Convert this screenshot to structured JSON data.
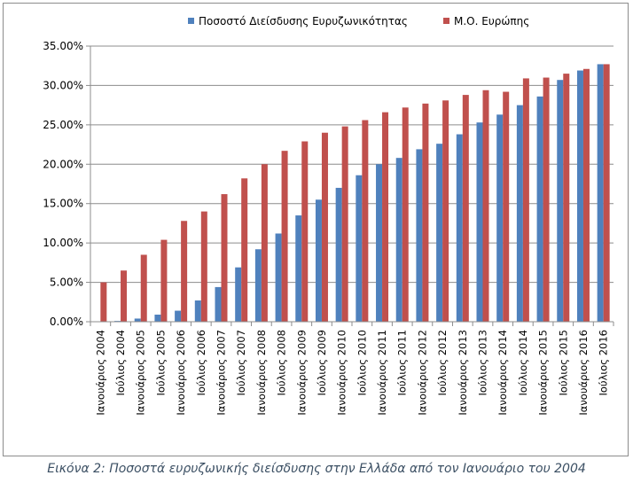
{
  "chart_data": {
    "type": "bar",
    "title": "",
    "xlabel": "",
    "ylabel": "",
    "ylim": [
      0,
      35
    ],
    "y_ticks": [
      0,
      5,
      10,
      15,
      20,
      25,
      30,
      35
    ],
    "y_tick_labels": [
      "0.00%",
      "5.00%",
      "10.00%",
      "15.00%",
      "20.00%",
      "25.00%",
      "30.00%",
      "35.00%"
    ],
    "grid": true,
    "legend_position": "top",
    "categories": [
      "Ιανουάριος 2004",
      "Ιούλιος 2004",
      "Ιανουάριος 2005",
      "Ιούλιος 2005",
      "Ιανουάριος 2006",
      "Ιούλιος 2006",
      "Ιανουάριος 2007",
      "Ιούλιος 2007",
      "Ιανουάριος 2008",
      "Ιούλιος 2008",
      "Ιανουάριος 2009",
      "Ιούλιος 2009",
      "Ιανουάριος 2010",
      "Ιούλιος 2010",
      "Ιανουάριος 2011",
      "Ιούλιος 2011",
      "Ιανουάριος 2012",
      "Ιούλιος 2012",
      "Ιανουάριος 2013",
      "Ιούλιος 2013",
      "Ιανουάριος 2014",
      "Ιούλιος 2014",
      "Ιανουάριος 2015",
      "Ιούλιος 2015",
      "Ιανουάριος 2016",
      "Ιούλιος 2016"
    ],
    "series": [
      {
        "name": "Ποσοστό Διείσδυσης Ευρυζωνικότητας",
        "color": "#4f81bd",
        "values": [
          0.0,
          0.1,
          0.4,
          0.9,
          1.4,
          2.7,
          4.4,
          6.9,
          9.2,
          11.2,
          13.5,
          15.5,
          17.0,
          18.6,
          20.0,
          20.8,
          21.9,
          22.6,
          23.8,
          25.3,
          26.3,
          27.5,
          28.6,
          30.7,
          31.9,
          32.7
        ]
      },
      {
        "name": "Μ.Ο. Ευρώπης",
        "color": "#c0504d",
        "values": [
          5.0,
          6.5,
          8.5,
          10.4,
          12.8,
          14.0,
          16.2,
          18.2,
          20.0,
          21.7,
          22.9,
          24.0,
          24.8,
          25.6,
          26.6,
          27.2,
          27.7,
          28.1,
          28.8,
          29.4,
          29.2,
          30.9,
          31.0,
          31.5,
          32.1,
          32.7
        ]
      }
    ]
  },
  "caption": "Εικόνα 2: Ποσοστά ευρυζωνικής διείσδυσης στην Ελλάδα από τον Ιανουάριο του 2004"
}
